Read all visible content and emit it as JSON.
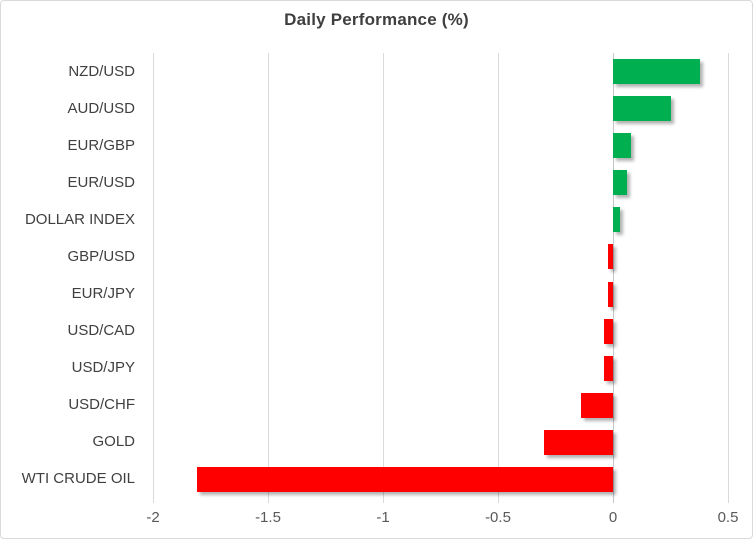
{
  "chart_data": {
    "type": "bar",
    "orientation": "horizontal",
    "title": "Daily Performance (%)",
    "categories": [
      "NZD/USD",
      "AUD/USD",
      "EUR/GBP",
      "EUR/USD",
      "DOLLAR INDEX",
      "GBP/USD",
      "EUR/JPY",
      "USD/CAD",
      "USD/JPY",
      "USD/CHF",
      "GOLD",
      "WTI CRUDE OIL"
    ],
    "values": [
      0.38,
      0.25,
      0.08,
      0.06,
      0.03,
      -0.02,
      -0.02,
      -0.04,
      -0.04,
      -0.14,
      -0.3,
      -1.81
    ],
    "xlabel": "",
    "ylabel": "",
    "xlim": [
      -2,
      0.5
    ],
    "x_ticks": [
      -2,
      -1.5,
      -1,
      -0.5,
      0,
      0.5
    ],
    "x_tick_labels": [
      "-2",
      "-1.5",
      "-1",
      "-0.5",
      "0",
      "0.5"
    ],
    "grid": true,
    "legend": false,
    "colors": {
      "positive": "#00B050",
      "negative": "#FF0000",
      "gridline": "#D9D9D9",
      "zero_axis": "#C6C6C6",
      "title_text": "#3F3F3F",
      "category_text": "#404040",
      "tick_text": "#595959",
      "background": "#FFFFFF",
      "border": "#D9D9D9"
    }
  }
}
